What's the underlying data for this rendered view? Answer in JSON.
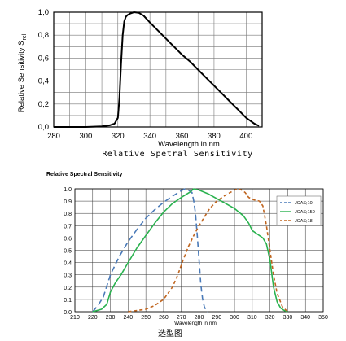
{
  "chart_data": [
    {
      "type": "line",
      "xlabel": "Wavelength in nm",
      "ylabel_main": "Relative Sensitivity S",
      "ylabel_sub": "rel",
      "caption": "Relative Spetral Sensitivity",
      "xlim": [
        280,
        410
      ],
      "ylim": [
        0,
        1.0
      ],
      "x_ticks": [
        280,
        300,
        320,
        340,
        360,
        380,
        400
      ],
      "y_ticks": [
        "0,0",
        "0,2",
        "0,4",
        "0,6",
        "0,8",
        "1,0"
      ],
      "grid": true,
      "series": [
        {
          "color": "#000000",
          "x": [
            280,
            300,
            310,
            315,
            318,
            320,
            321,
            322,
            323,
            324,
            325,
            326,
            328,
            330,
            333,
            336,
            340,
            345,
            350,
            355,
            360,
            365,
            370,
            375,
            380,
            385,
            390,
            395,
            400,
            405,
            408
          ],
          "y": [
            0,
            0,
            0.005,
            0.015,
            0.03,
            0.08,
            0.25,
            0.55,
            0.8,
            0.92,
            0.96,
            0.975,
            0.99,
            1.0,
            0.995,
            0.97,
            0.91,
            0.84,
            0.77,
            0.7,
            0.63,
            0.57,
            0.5,
            0.43,
            0.36,
            0.29,
            0.22,
            0.15,
            0.08,
            0.03,
            0.01
          ]
        }
      ]
    },
    {
      "type": "line",
      "title": "Relative Spectral Sensitivity",
      "xlabel": "Wavelength in nm",
      "xlim": [
        210,
        350
      ],
      "ylim": [
        0,
        1.0
      ],
      "x_ticks": [
        210,
        220,
        230,
        240,
        250,
        260,
        270,
        280,
        290,
        300,
        310,
        320,
        330,
        340,
        350
      ],
      "y_ticks": [
        "0.0",
        "0.1",
        "0.2",
        "0.3",
        "0.4",
        "0.5",
        "0.6",
        "0.7",
        "0.8",
        "0.9",
        "1.0"
      ],
      "grid": true,
      "legend_position": "top-right",
      "series": [
        {
          "name": "JCAS;10",
          "color": "#4a7ab8",
          "dash": "7,4",
          "x": [
            220,
            223,
            226,
            230,
            235,
            240,
            245,
            250,
            255,
            260,
            265,
            270,
            272,
            274,
            276,
            277,
            278,
            279,
            280,
            281,
            282,
            283,
            284,
            285
          ],
          "y": [
            0,
            0.05,
            0.12,
            0.3,
            0.45,
            0.57,
            0.67,
            0.76,
            0.83,
            0.89,
            0.94,
            0.985,
            1.0,
            0.99,
            0.97,
            0.9,
            0.8,
            0.62,
            0.42,
            0.22,
            0.1,
            0.04,
            0.01,
            0
          ]
        },
        {
          "name": "JCAS;150",
          "color": "#2ab24f",
          "dash": "",
          "x": [
            220,
            225,
            228,
            230,
            233,
            236,
            240,
            245,
            250,
            255,
            260,
            265,
            270,
            275,
            277,
            280,
            285,
            290,
            295,
            300,
            305,
            308,
            310,
            313,
            316,
            318,
            320,
            322,
            324,
            326,
            328,
            330
          ],
          "y": [
            0,
            0.02,
            0.06,
            0.16,
            0.24,
            0.3,
            0.4,
            0.52,
            0.62,
            0.72,
            0.81,
            0.88,
            0.93,
            0.975,
            1.0,
            0.99,
            0.96,
            0.92,
            0.88,
            0.84,
            0.78,
            0.72,
            0.66,
            0.63,
            0.6,
            0.55,
            0.42,
            0.2,
            0.08,
            0.03,
            0.01,
            0
          ]
        },
        {
          "name": "JCAS;18",
          "color": "#c0651f",
          "dash": "4,3",
          "x": [
            240,
            245,
            250,
            255,
            260,
            265,
            268,
            271,
            274,
            277,
            280,
            283,
            286,
            290,
            295,
            300,
            302,
            304,
            306,
            308,
            311,
            314,
            316,
            318,
            320,
            322,
            324,
            327,
            330
          ],
          "y": [
            0,
            0.01,
            0.02,
            0.05,
            0.1,
            0.2,
            0.3,
            0.42,
            0.53,
            0.62,
            0.7,
            0.77,
            0.84,
            0.9,
            0.95,
            0.99,
            1.0,
            0.99,
            0.97,
            0.93,
            0.91,
            0.9,
            0.86,
            0.7,
            0.5,
            0.3,
            0.15,
            0.04,
            0
          ]
        }
      ]
    }
  ],
  "bottom_caption": "选型图"
}
